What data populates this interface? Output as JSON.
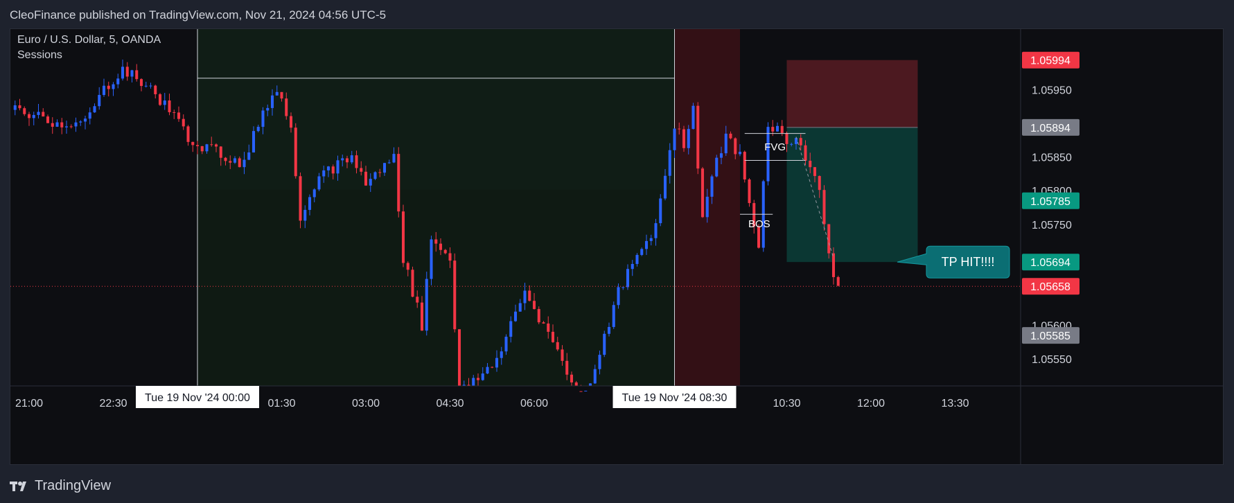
{
  "header": {
    "publisher_line": "CleoFinance published on TradingView.com, Nov 21, 2024 04:56 UTC-5"
  },
  "footer": {
    "brand": "TradingView"
  },
  "chart_data": {
    "type": "candlestick",
    "symbol_line": "Euro / U.S. Dollar, 5, OANDA",
    "indicator": "Sessions",
    "ylim": [
      1.0551,
      1.0604
    ],
    "price_ticks": [
      "1.05950",
      "1.05850",
      "1.05800",
      "1.05750",
      "1.05600",
      "1.05550"
    ],
    "time_ticks": [
      {
        "label": "21:00",
        "t": -36
      },
      {
        "label": "22:30",
        "t": -18
      },
      {
        "label": "01:30",
        "t": 18
      },
      {
        "label": "03:00",
        "t": 36
      },
      {
        "label": "04:30",
        "t": 54
      },
      {
        "label": "06:00",
        "t": 72
      },
      {
        "label": "10:30",
        "t": 126
      },
      {
        "label": "12:00",
        "t": 144
      },
      {
        "label": "13:30",
        "t": 162
      }
    ],
    "crosshair_dates": [
      {
        "label": "Tue 19 Nov '24   00:00",
        "t": 0
      },
      {
        "label": "Tue 19 Nov '24   08:30",
        "t": 102
      }
    ],
    "price_badges": [
      {
        "label": "1.05994",
        "price": 1.05994,
        "color": "#f23645"
      },
      {
        "label": "1.05894",
        "price": 1.05894,
        "color": "#787b86"
      },
      {
        "label": "1.05785",
        "price": 1.05785,
        "color": "#089981"
      },
      {
        "label": "1.05694",
        "price": 1.05694,
        "color": "#089981"
      },
      {
        "label": "1.05658",
        "price": 1.05658,
        "color": "#f23645"
      },
      {
        "label": "1.05585",
        "price": 1.05585,
        "color": "#787b86"
      }
    ],
    "current_price": 1.05658,
    "session_open_level": 1.05967,
    "position": {
      "t_start": 126,
      "t_end": 154,
      "stop": 1.05994,
      "entry": 1.05894,
      "target": 1.05694
    },
    "fvg": {
      "label": "FVG",
      "top": 1.05885,
      "bottom": 1.05845,
      "t_start": 117,
      "t_end": 130
    },
    "bos": {
      "label": "BOS",
      "level": 1.05765,
      "t_start": 116,
      "t_end": 123
    },
    "callout": {
      "text": "TP HIT!!!!",
      "price": 1.05694
    },
    "colors": {
      "up": "#2962ff",
      "down": "#f23645",
      "bg": "#0d0e12"
    },
    "candles_seed": 19
  }
}
